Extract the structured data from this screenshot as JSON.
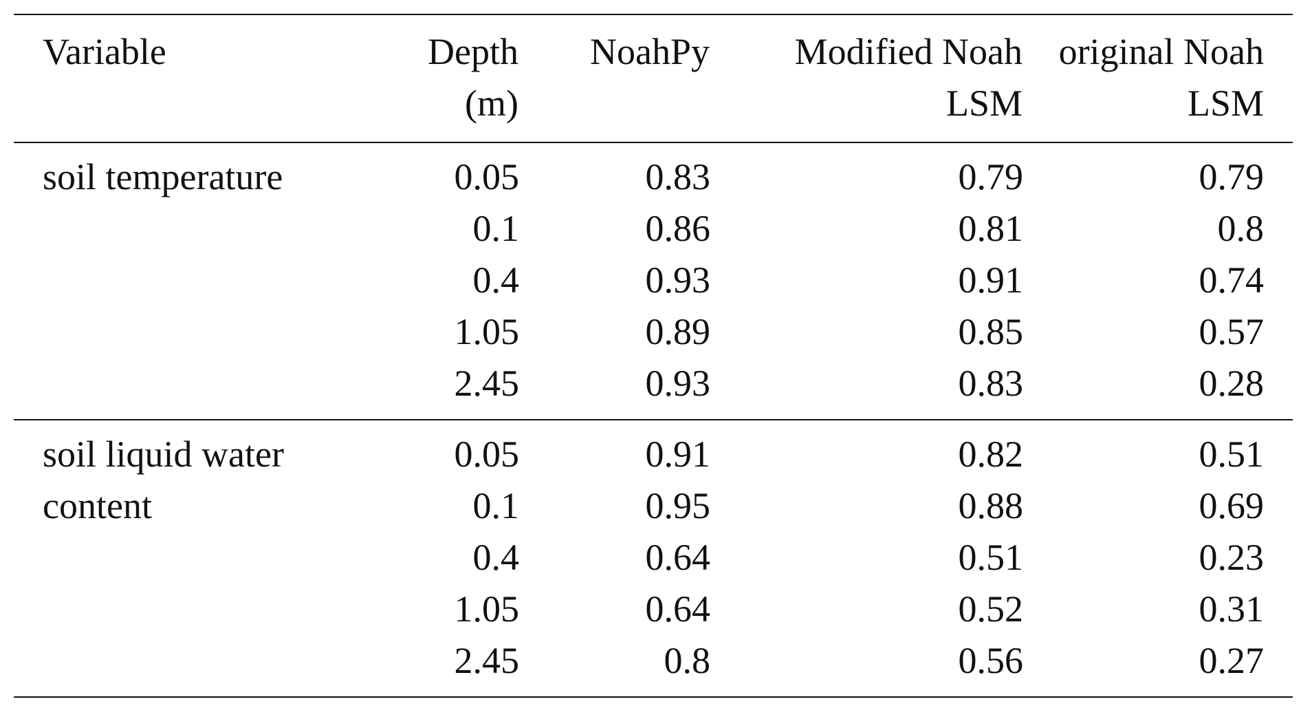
{
  "table": {
    "headers": {
      "variable": [
        "Variable"
      ],
      "depth": [
        "Depth",
        "(m)"
      ],
      "noahpy": [
        "NoahPy"
      ],
      "modified": [
        "Modified Noah",
        "LSM"
      ],
      "original": [
        "original Noah",
        "LSM"
      ]
    },
    "groups": [
      {
        "variable_lines": [
          "soil temperature"
        ],
        "rows": [
          {
            "depth": "0.05",
            "noahpy": "0.83",
            "modified": "0.79",
            "original": "0.79"
          },
          {
            "depth": "0.1",
            "noahpy": "0.86",
            "modified": "0.81",
            "original": "0.8"
          },
          {
            "depth": "0.4",
            "noahpy": "0.93",
            "modified": "0.91",
            "original": "0.74"
          },
          {
            "depth": "1.05",
            "noahpy": "0.89",
            "modified": "0.85",
            "original": "0.57"
          },
          {
            "depth": "2.45",
            "noahpy": "0.93",
            "modified": "0.83",
            "original": "0.28"
          }
        ]
      },
      {
        "variable_lines": [
          "soil liquid water",
          "content"
        ],
        "rows": [
          {
            "depth": "0.05",
            "noahpy": "0.91",
            "modified": "0.82",
            "original": "0.51"
          },
          {
            "depth": "0.1",
            "noahpy": "0.95",
            "modified": "0.88",
            "original": "0.69"
          },
          {
            "depth": "0.4",
            "noahpy": "0.64",
            "modified": "0.51",
            "original": "0.23"
          },
          {
            "depth": "1.05",
            "noahpy": "0.64",
            "modified": "0.52",
            "original": "0.31"
          },
          {
            "depth": "2.45",
            "noahpy": "0.8",
            "modified": "0.56",
            "original": "0.27"
          }
        ]
      }
    ]
  }
}
